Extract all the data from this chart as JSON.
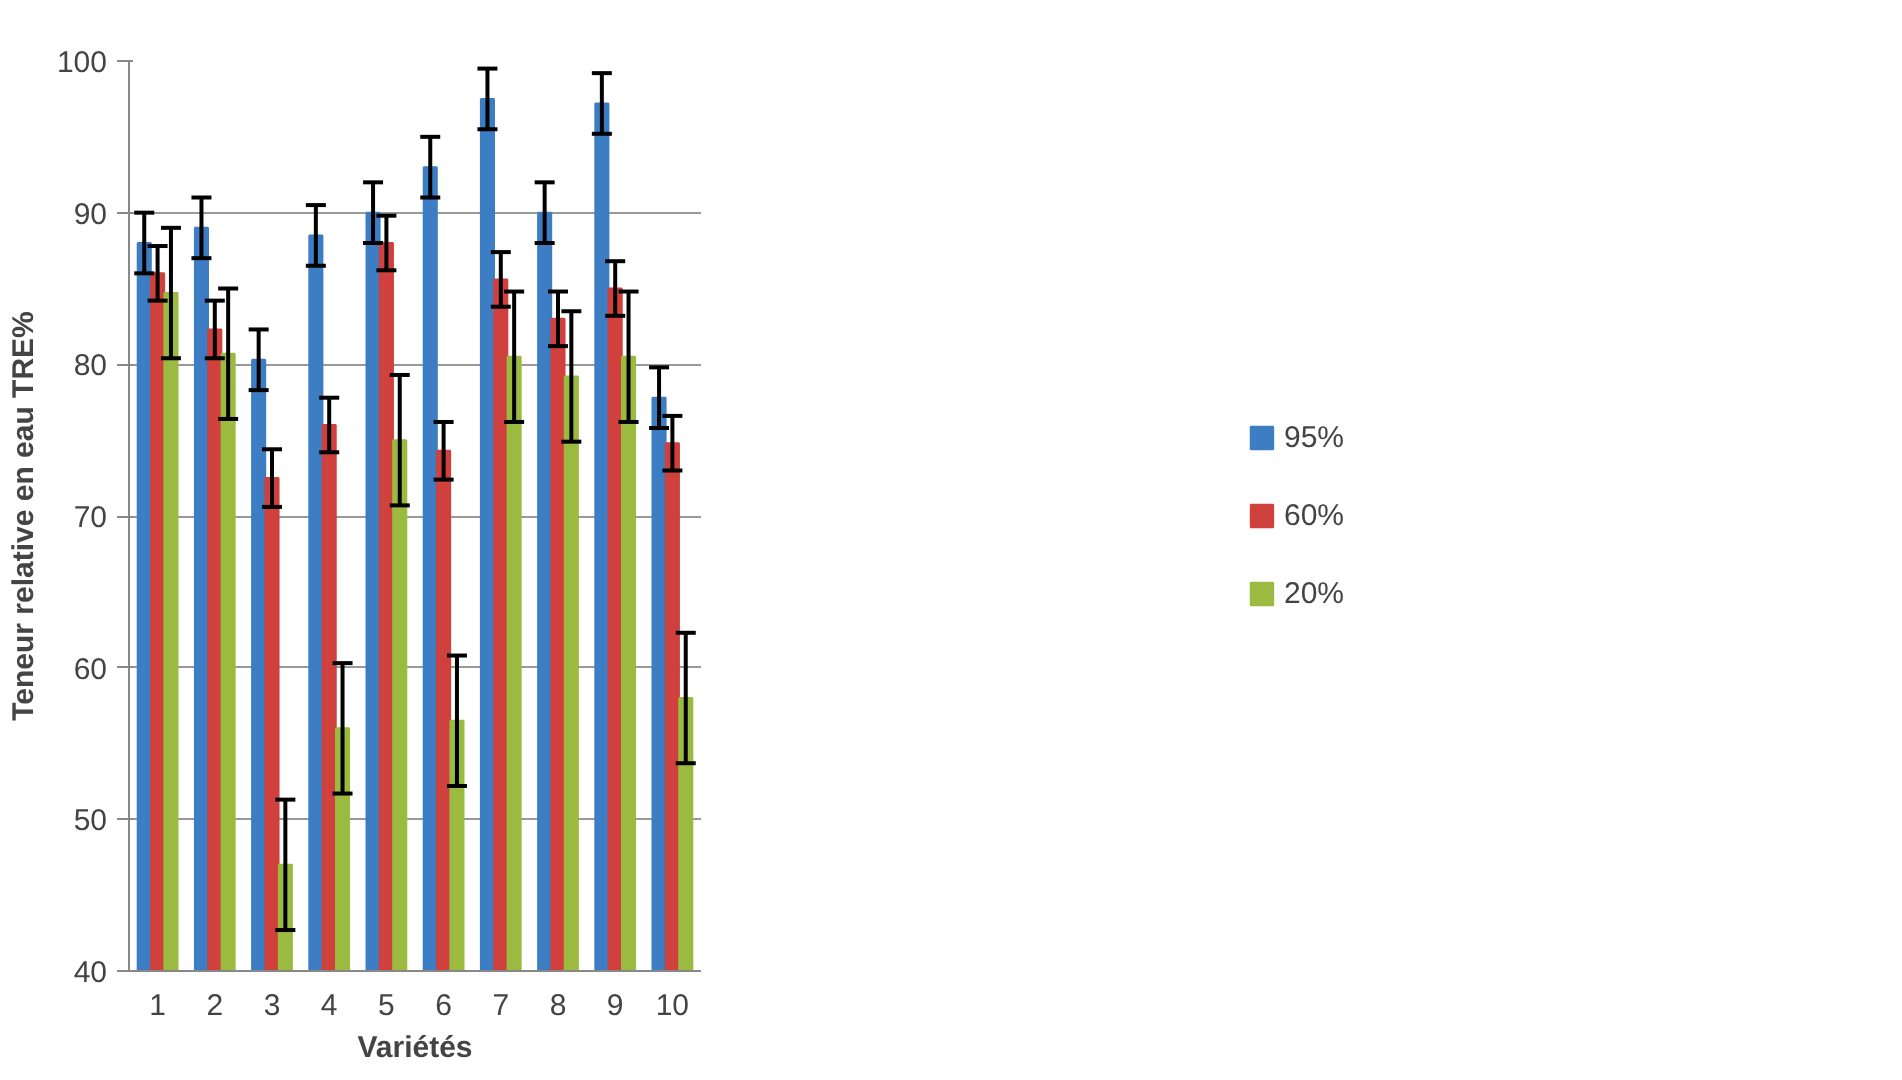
{
  "chart_data": {
    "type": "bar",
    "xlabel": "Variétés",
    "ylabel": "Teneur relative en eau TRE%",
    "categories": [
      "1",
      "2",
      "3",
      "4",
      "5",
      "6",
      "7",
      "8",
      "9",
      "10"
    ],
    "series": [
      {
        "name": "95%",
        "color": "#3c7dc4",
        "values": [
          88,
          89,
          80.3,
          88.5,
          90,
          93,
          97.5,
          90,
          97.2,
          77.8
        ],
        "errors": [
          2,
          2,
          2,
          2,
          2,
          2,
          2,
          2,
          2,
          2
        ]
      },
      {
        "name": "60%",
        "color": "#d0403c",
        "values": [
          86,
          82.3,
          72.5,
          76,
          88,
          74.3,
          85.6,
          83,
          85,
          74.8
        ],
        "errors": [
          1.8,
          1.9,
          1.9,
          1.8,
          1.8,
          1.9,
          1.8,
          1.8,
          1.8,
          1.8
        ]
      },
      {
        "name": "20%",
        "color": "#9bbb40",
        "values": [
          84.7,
          80.7,
          47,
          56,
          75,
          56.5,
          80.5,
          79.2,
          80.5,
          58
        ],
        "errors": [
          4.3,
          4.3,
          4.3,
          4.3,
          4.3,
          4.3,
          4.3,
          4.3,
          4.3,
          4.3
        ]
      }
    ],
    "ylim": [
      40,
      100
    ],
    "yticks": [
      40,
      50,
      60,
      70,
      80,
      90,
      100
    ],
    "grid": "y",
    "legend": "right"
  }
}
